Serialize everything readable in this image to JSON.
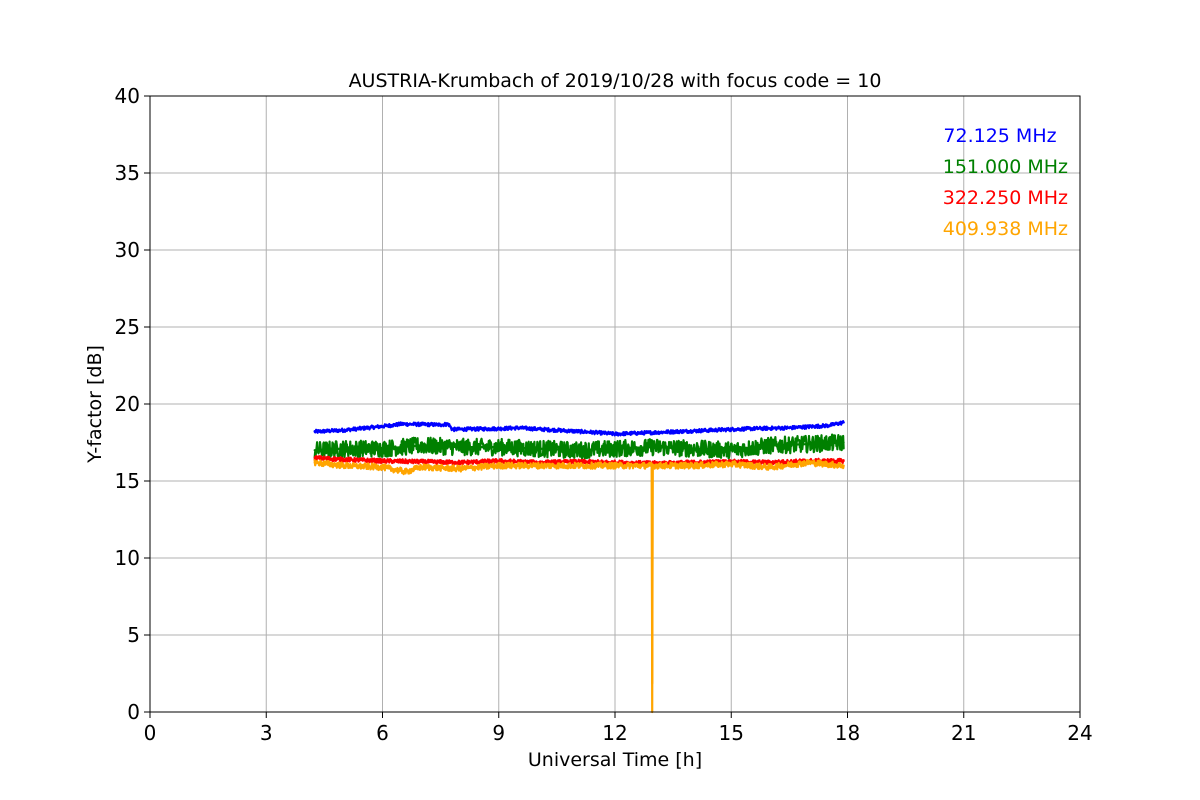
{
  "chart_data": {
    "type": "line",
    "title": "AUSTRIA-Krumbach of 2019/10/28 with focus code = 10",
    "xlabel": "Universal Time [h]",
    "ylabel": "Y-factor [dB]",
    "xlim": [
      0,
      24
    ],
    "ylim": [
      0,
      40
    ],
    "xticks": [
      0,
      3,
      6,
      9,
      12,
      15,
      18,
      21,
      24
    ],
    "yticks": [
      0,
      5,
      10,
      15,
      20,
      25,
      30,
      35,
      40
    ],
    "grid": true,
    "legend_position": "top-right",
    "series": [
      {
        "name": "72.125 MHz",
        "color": "#0000ff",
        "noise": 0.12,
        "x": [
          4.25,
          5.0,
          6.0,
          6.5,
          7.5,
          7.7,
          7.8,
          9.0,
          9.5,
          10.5,
          11.5,
          12.0,
          12.5,
          13.5,
          14.5,
          15.5,
          16.5,
          17.5,
          17.9
        ],
        "y": [
          18.2,
          18.3,
          18.55,
          18.7,
          18.65,
          18.7,
          18.35,
          18.4,
          18.45,
          18.3,
          18.15,
          18.05,
          18.1,
          18.2,
          18.3,
          18.4,
          18.45,
          18.6,
          18.8
        ]
      },
      {
        "name": "151.000 MHz",
        "color": "#008000",
        "noise": 0.55,
        "x": [
          4.25,
          5.0,
          6.0,
          7.0,
          8.0,
          9.0,
          10.0,
          11.0,
          12.0,
          13.0,
          14.0,
          15.0,
          16.0,
          17.0,
          17.9
        ],
        "y": [
          17.0,
          17.1,
          17.1,
          17.3,
          17.2,
          17.2,
          17.1,
          17.0,
          17.1,
          17.2,
          17.1,
          17.0,
          17.3,
          17.4,
          17.5
        ]
      },
      {
        "name": "322.250 MHz",
        "color": "#ff0000",
        "noise": 0.14,
        "x": [
          4.25,
          5.0,
          6.0,
          7.0,
          8.0,
          9.0,
          10.0,
          11.0,
          12.0,
          13.0,
          14.0,
          15.0,
          16.0,
          17.0,
          17.9
        ],
        "y": [
          16.5,
          16.4,
          16.3,
          16.25,
          16.2,
          16.3,
          16.2,
          16.25,
          16.2,
          16.15,
          16.2,
          16.25,
          16.2,
          16.3,
          16.3
        ]
      },
      {
        "name": "409.938 MHz",
        "color": "#ffa500",
        "noise": 0.2,
        "x": [
          4.25,
          5.0,
          6.0,
          6.6,
          7.0,
          8.0,
          9.0,
          10.0,
          11.0,
          12.0,
          12.95,
          12.96,
          12.97,
          13.0,
          14.0,
          15.0,
          16.0,
          17.0,
          17.9
        ],
        "y": [
          16.2,
          16.0,
          15.9,
          15.6,
          15.9,
          15.8,
          16.0,
          16.0,
          16.0,
          16.0,
          16.0,
          0,
          16.0,
          16.0,
          16.0,
          16.1,
          15.9,
          16.2,
          16.0
        ]
      }
    ]
  }
}
